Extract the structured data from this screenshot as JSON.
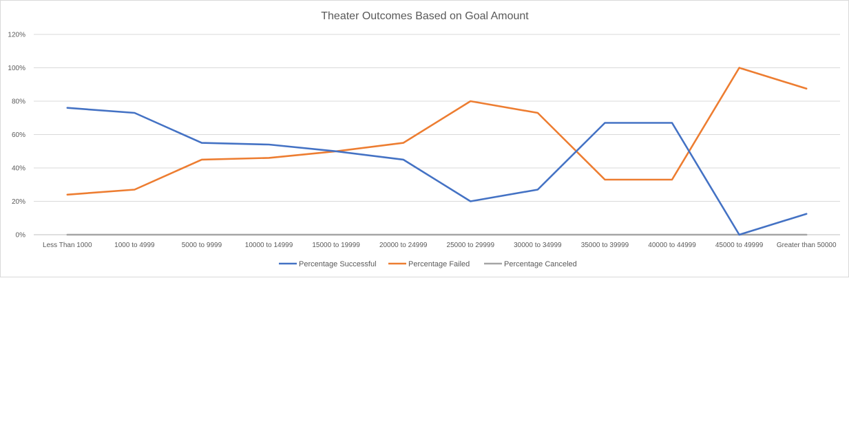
{
  "chart_data": {
    "type": "line",
    "title": "Theater Outcomes Based on Goal Amount",
    "xlabel": "",
    "ylabel": "",
    "ylim": [
      0,
      1.2
    ],
    "y_ticks": [
      "0%",
      "20%",
      "40%",
      "60%",
      "80%",
      "100%",
      "120%"
    ],
    "grid": true,
    "legend_position": "bottom",
    "categories": [
      "Less Than 1000",
      "1000 to 4999",
      "5000 to 9999",
      "10000 to 14999",
      "15000 to 19999",
      "20000 to 24999",
      "25000 to 29999",
      "30000 to 34999",
      "35000 to 39999",
      "40000 to 44999",
      "45000 to 49999",
      "Greater than 50000"
    ],
    "series": [
      {
        "name": "Percentage Successful",
        "color": "#4472c4",
        "values": [
          0.76,
          0.73,
          0.55,
          0.54,
          0.5,
          0.45,
          0.2,
          0.27,
          0.67,
          0.67,
          0.0,
          0.125
        ]
      },
      {
        "name": "Percentage Failed",
        "color": "#ed7d31",
        "values": [
          0.24,
          0.27,
          0.45,
          0.46,
          0.5,
          0.55,
          0.8,
          0.73,
          0.33,
          0.33,
          1.0,
          0.875
        ]
      },
      {
        "name": "Percentage Canceled",
        "color": "#a5a5a5",
        "values": [
          0,
          0,
          0,
          0,
          0,
          0,
          0,
          0,
          0,
          0,
          0,
          0
        ]
      }
    ]
  }
}
